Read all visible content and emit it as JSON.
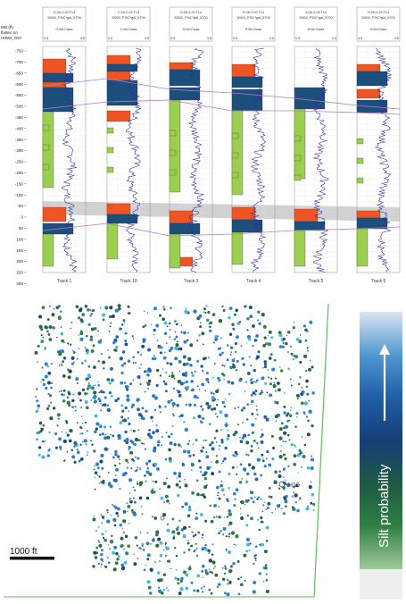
{
  "well_panel": {
    "depth_axis_title": [
      "MD (ft)",
      "flatten on",
      "H0M2_G57"
    ],
    "depth_ticks": [
      "-750",
      "-700",
      "-650",
      "-600",
      "-550",
      "-500",
      "-450",
      "-400",
      "-350",
      "-300",
      "-250",
      "-200",
      "-150",
      "-100",
      "-50",
      "0",
      "50",
      "100",
      "150",
      "200",
      "250",
      "300"
    ],
    "tracks": [
      {
        "name": "Track 1",
        "well": "G:2b-0-0CT14",
        "header2": "3/500_PSiC*gal_5700",
        "curve_label": "G:Mt-Class",
        "scale_min": "0.5",
        "scale_max": "4.5"
      },
      {
        "name": "Track 10",
        "well": "C:2b-0-0CT14",
        "header2": "3/500_PSiC*gal_5700",
        "curve_label": "C:Mt-Class",
        "scale_min": "0.5",
        "scale_max": "4.5"
      },
      {
        "name": "Track 3",
        "well": "D:2b-0-0CT14",
        "header2": "3/500_PSiC*gal_5700",
        "curve_label": "D:Mt-Class",
        "scale_min": "0.5",
        "scale_max": "4.5"
      },
      {
        "name": "Track 4",
        "well": "P:2b-0-0CT14",
        "header2": "3/500_PSiC*gal_5700",
        "curve_label": "P:Mt-Class",
        "scale_min": "0.5",
        "scale_max": "4.5"
      },
      {
        "name": "Track 5",
        "well": "A:2b-0-0CT14",
        "header2": "3/500_PSiC*gal_5700",
        "curve_label": "A:Mt-Class",
        "scale_min": "0.5",
        "scale_max": "4.5"
      },
      {
        "name": "Track 6",
        "well": "H:2b-0-0CT14",
        "header2": "3/500_PSiC*gal_5700",
        "curve_label": "H:Mt-Class",
        "scale_min": "0.5",
        "scale_max": "4.5"
      }
    ],
    "colors": {
      "sand": "#9ccf4f",
      "orange": "#ef5424",
      "blue": "#1d4f7c",
      "curve": "#2b2f9a",
      "horizon": "#b27cc9",
      "gray_band": "#c9c9c9"
    }
  },
  "map_panel": {
    "scale_bar_label": "1000 ft",
    "well_label": "H10",
    "colors": {
      "green": "#2c6a3c",
      "blue": "#2d7fcf",
      "cyan": "#47b7e0",
      "border": "#5bbf5b"
    }
  },
  "colorbar": {
    "label": "Silt probability",
    "gradient": [
      "#d7e5f2",
      "#4f97cf",
      "#1f5fa8",
      "#163e76",
      "#1e5a45",
      "#2e7f43",
      "#9fc99b"
    ]
  }
}
